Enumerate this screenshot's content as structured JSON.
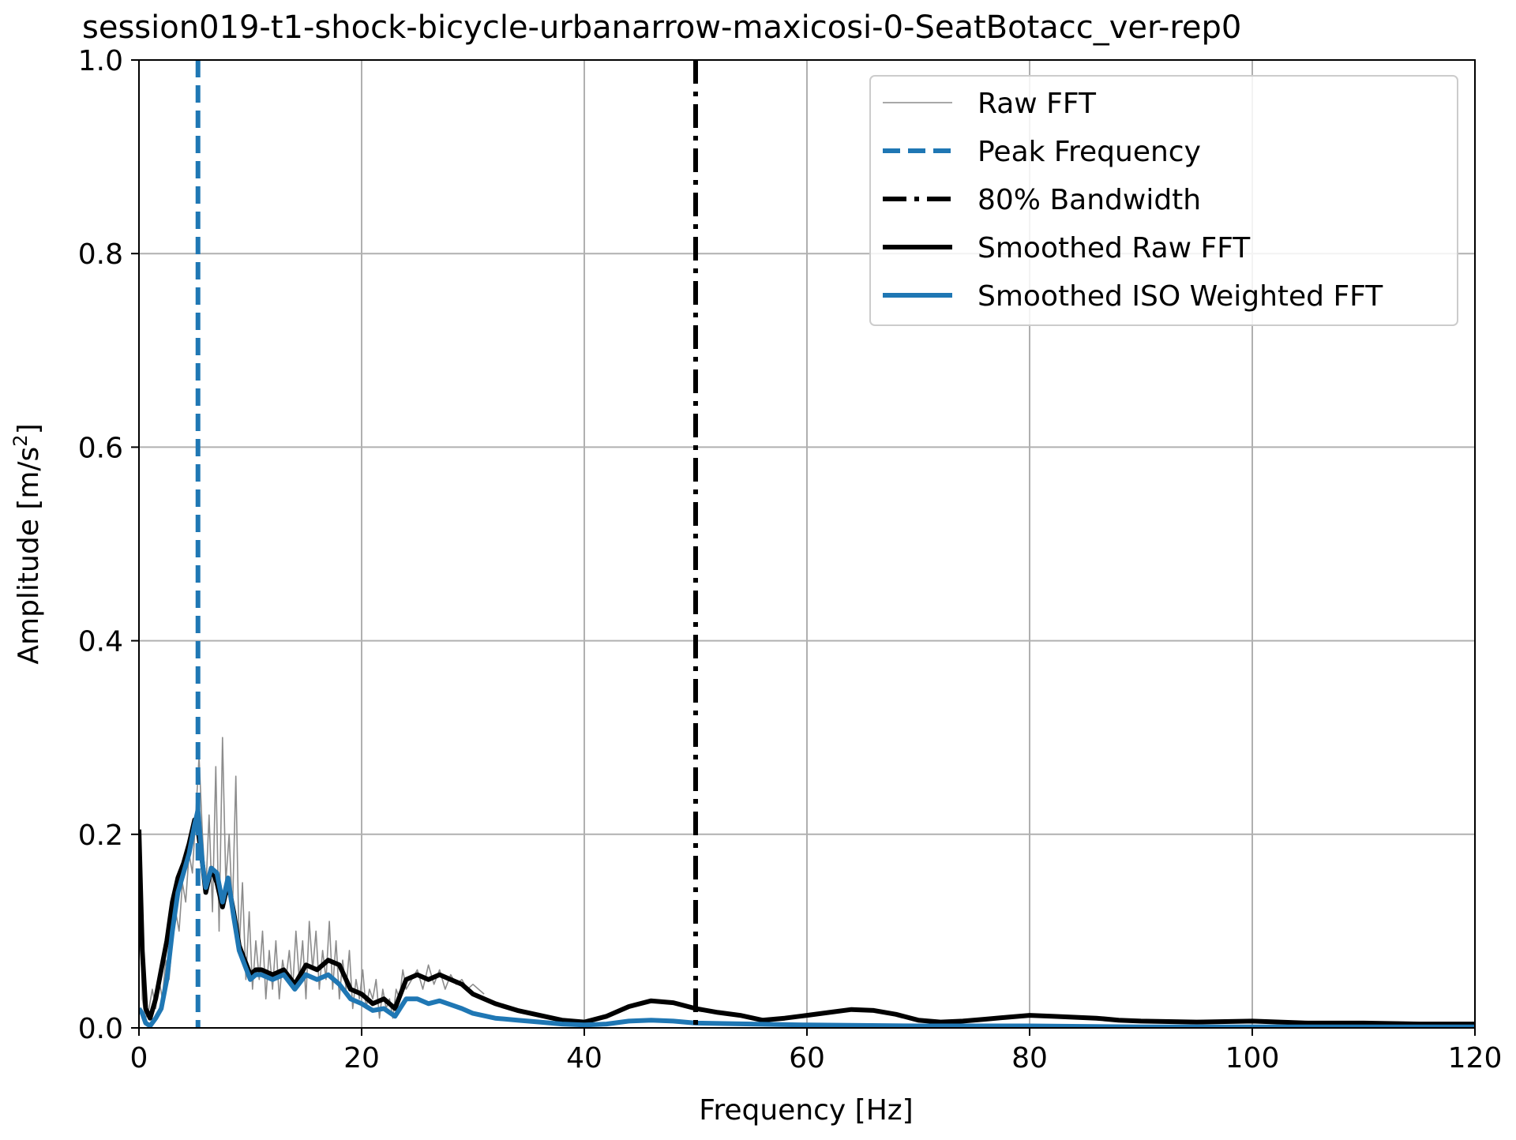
{
  "chart_data": {
    "type": "line",
    "title": "session019-t1-shock-bicycle-urbanarrow-maxicosi-0-SeatBotacc_ver-rep0",
    "xlabel": "Frequency [Hz]",
    "ylabel_prefix": "Amplitude [m/s",
    "ylabel_exponent": "2",
    "ylabel_suffix": "]",
    "xlim": [
      0,
      120
    ],
    "ylim": [
      0,
      1.0
    ],
    "xticks": [
      0,
      20,
      40,
      60,
      80,
      100,
      120
    ],
    "xtick_labels": [
      "0",
      "20",
      "40",
      "60",
      "80",
      "100",
      "120"
    ],
    "yticks": [
      0.0,
      0.2,
      0.4,
      0.6,
      0.8,
      1.0
    ],
    "ytick_labels": [
      "0.0",
      "0.2",
      "0.4",
      "0.6",
      "0.8",
      "1.0"
    ],
    "grid": true,
    "legend_position": "top-right",
    "colors": {
      "raw": "#8c8c8c",
      "peak": "#1f77b4",
      "bandwidth": "#000000",
      "smoothed_raw": "#000000",
      "smoothed_iso": "#1f77b4"
    },
    "vlines": [
      {
        "name": "Peak Frequency",
        "x": 5.3,
        "style": "dashed",
        "color": "#1f77b4"
      },
      {
        "name": "80% Bandwidth",
        "x": 50.0,
        "style": "dashdot",
        "color": "#000000"
      }
    ],
    "series": [
      {
        "name": "Raw FFT",
        "color": "#8c8c8c",
        "x": [
          0,
          0.3,
          0.6,
          0.9,
          1.2,
          1.5,
          1.8,
          2.1,
          2.4,
          2.7,
          3.0,
          3.3,
          3.6,
          3.9,
          4.2,
          4.5,
          4.8,
          5.1,
          5.4,
          5.7,
          6.0,
          6.3,
          6.6,
          6.9,
          7.2,
          7.5,
          7.8,
          8.1,
          8.4,
          8.7,
          9.0,
          9.3,
          9.6,
          9.9,
          10.2,
          10.5,
          10.8,
          11.1,
          11.4,
          11.7,
          12.0,
          12.3,
          12.6,
          12.9,
          13.2,
          13.5,
          13.8,
          14.1,
          14.4,
          14.7,
          15.0,
          15.3,
          15.6,
          15.9,
          16.2,
          16.5,
          16.8,
          17.1,
          17.4,
          17.7,
          18.0,
          18.3,
          18.6,
          18.9,
          19.2,
          19.5,
          19.8,
          20.1,
          20.4,
          20.7,
          21.0,
          21.3,
          21.6,
          21.9,
          22.2,
          22.5,
          22.8,
          23.1,
          23.4,
          23.7,
          24.0,
          24.5,
          25.0,
          25.5,
          26.0,
          26.5,
          27.0,
          27.5,
          28.0,
          28.5,
          29.0,
          29.5,
          30.0,
          30.5,
          31.0
        ],
        "y": [
          0.2,
          0.03,
          0.01,
          0.02,
          0.04,
          0.02,
          0.05,
          0.03,
          0.07,
          0.05,
          0.09,
          0.12,
          0.1,
          0.15,
          0.13,
          0.18,
          0.16,
          0.22,
          0.28,
          0.2,
          0.14,
          0.22,
          0.12,
          0.27,
          0.1,
          0.3,
          0.15,
          0.2,
          0.12,
          0.26,
          0.08,
          0.15,
          0.05,
          0.12,
          0.04,
          0.09,
          0.05,
          0.1,
          0.03,
          0.08,
          0.04,
          0.09,
          0.03,
          0.07,
          0.05,
          0.08,
          0.04,
          0.1,
          0.05,
          0.09,
          0.03,
          0.11,
          0.06,
          0.1,
          0.04,
          0.08,
          0.05,
          0.11,
          0.04,
          0.09,
          0.03,
          0.07,
          0.04,
          0.08,
          0.02,
          0.05,
          0.03,
          0.06,
          0.02,
          0.04,
          0.03,
          0.05,
          0.01,
          0.04,
          0.02,
          0.03,
          0.01,
          0.04,
          0.03,
          0.06,
          0.04,
          0.05,
          0.06,
          0.04,
          0.065,
          0.045,
          0.06,
          0.04,
          0.055,
          0.045,
          0.05,
          0.04,
          0.045,
          0.04,
          0.035
        ]
      },
      {
        "name": "Smoothed Raw FFT",
        "color": "#000000",
        "x": [
          0,
          0.3,
          0.6,
          1.0,
          1.5,
          2.0,
          2.5,
          3.0,
          3.5,
          4.0,
          4.5,
          5.0,
          5.3,
          5.7,
          6.0,
          6.5,
          7.0,
          7.5,
          8.0,
          8.5,
          9.0,
          9.5,
          10.0,
          10.5,
          11.0,
          12.0,
          13.0,
          14.0,
          15.0,
          16.0,
          17.0,
          18.0,
          19.0,
          20.0,
          21.0,
          22.0,
          23.0,
          24.0,
          25.0,
          26.0,
          27.0,
          28.0,
          29.0,
          30.0,
          32.0,
          34.0,
          36.0,
          38.0,
          40.0,
          42.0,
          44.0,
          46.0,
          48.0,
          50.0,
          52.0,
          54.0,
          56.0,
          58.0,
          60.0,
          62.0,
          64.0,
          66.0,
          68.0,
          70.0,
          72.0,
          74.0,
          76.0,
          78.0,
          80.0,
          82.0,
          84.0,
          86.0,
          88.0,
          90.0,
          95.0,
          100.0,
          105.0,
          110.0,
          115.0,
          120.0
        ],
        "y": [
          0.205,
          0.08,
          0.02,
          0.01,
          0.03,
          0.06,
          0.09,
          0.13,
          0.155,
          0.17,
          0.19,
          0.215,
          0.205,
          0.17,
          0.14,
          0.165,
          0.15,
          0.125,
          0.15,
          0.12,
          0.085,
          0.07,
          0.055,
          0.06,
          0.06,
          0.055,
          0.06,
          0.045,
          0.065,
          0.06,
          0.07,
          0.065,
          0.04,
          0.035,
          0.025,
          0.03,
          0.02,
          0.05,
          0.055,
          0.05,
          0.055,
          0.05,
          0.045,
          0.035,
          0.025,
          0.018,
          0.013,
          0.008,
          0.006,
          0.012,
          0.022,
          0.028,
          0.026,
          0.02,
          0.016,
          0.013,
          0.008,
          0.01,
          0.013,
          0.016,
          0.019,
          0.018,
          0.014,
          0.008,
          0.006,
          0.007,
          0.009,
          0.011,
          0.013,
          0.012,
          0.011,
          0.01,
          0.008,
          0.007,
          0.006,
          0.007,
          0.005,
          0.005,
          0.004,
          0.004
        ]
      },
      {
        "name": "Smoothed ISO Weighted FFT",
        "color": "#1f77b4",
        "x": [
          0,
          0.3,
          0.6,
          1.0,
          1.5,
          2.0,
          2.5,
          3.0,
          3.5,
          4.0,
          4.5,
          5.0,
          5.3,
          5.7,
          6.0,
          6.5,
          7.0,
          7.5,
          8.0,
          8.5,
          9.0,
          9.5,
          10.0,
          10.5,
          11.0,
          12.0,
          13.0,
          14.0,
          15.0,
          16.0,
          17.0,
          18.0,
          19.0,
          20.0,
          21.0,
          22.0,
          23.0,
          24.0,
          25.0,
          26.0,
          27.0,
          28.0,
          29.0,
          30.0,
          32.0,
          34.0,
          36.0,
          38.0,
          40.0,
          42.0,
          44.0,
          46.0,
          48.0,
          50.0,
          55.0,
          60.0,
          70.0,
          80.0,
          90.0,
          100.0,
          110.0,
          120.0
        ],
        "y": [
          0.02,
          0.015,
          0.005,
          0.002,
          0.01,
          0.02,
          0.05,
          0.1,
          0.14,
          0.16,
          0.18,
          0.21,
          0.225,
          0.17,
          0.145,
          0.165,
          0.16,
          0.13,
          0.155,
          0.115,
          0.08,
          0.065,
          0.05,
          0.055,
          0.055,
          0.05,
          0.055,
          0.04,
          0.055,
          0.05,
          0.055,
          0.045,
          0.03,
          0.025,
          0.018,
          0.02,
          0.012,
          0.03,
          0.03,
          0.025,
          0.028,
          0.024,
          0.02,
          0.015,
          0.01,
          0.008,
          0.006,
          0.004,
          0.003,
          0.004,
          0.007,
          0.008,
          0.007,
          0.005,
          0.004,
          0.003,
          0.002,
          0.002,
          0.001,
          0.001,
          0.001,
          0.001
        ]
      }
    ],
    "legend": [
      {
        "label": "Raw FFT",
        "style": "thin",
        "color": "#8c8c8c"
      },
      {
        "label": "Peak Frequency",
        "style": "dashed",
        "color": "#1f77b4"
      },
      {
        "label": "80% Bandwidth",
        "style": "dashdot",
        "color": "#000000"
      },
      {
        "label": "Smoothed Raw FFT",
        "style": "solid",
        "color": "#000000"
      },
      {
        "label": "Smoothed ISO Weighted FFT",
        "style": "solid",
        "color": "#1f77b4"
      }
    ]
  }
}
